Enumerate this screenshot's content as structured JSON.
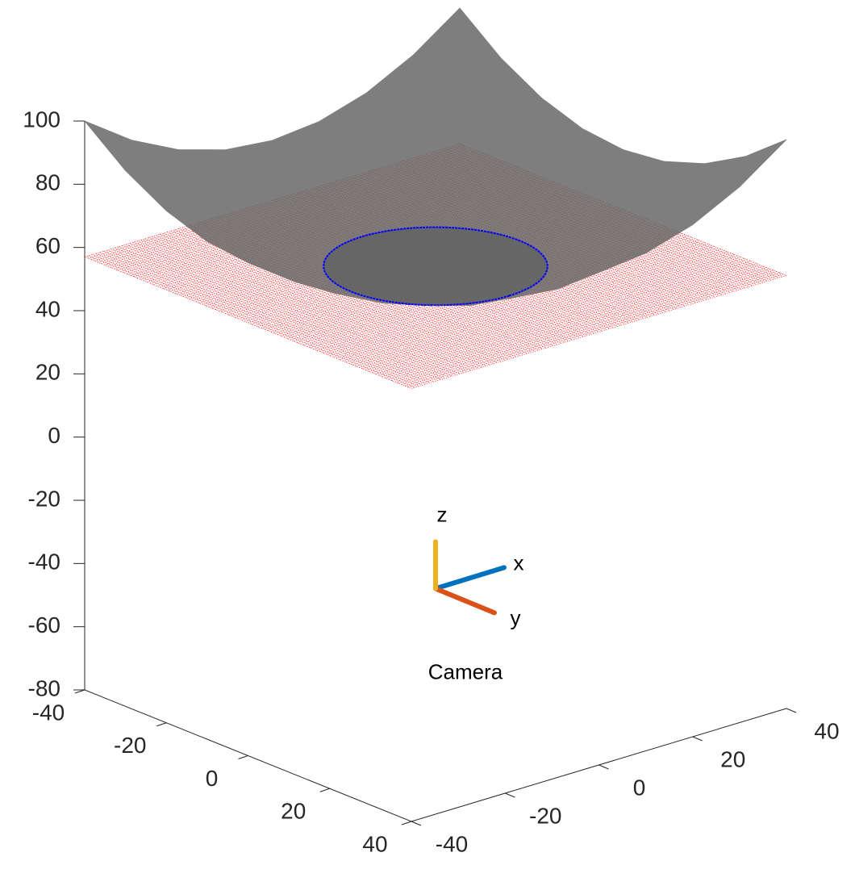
{
  "chart_data": {
    "type": "surface3d",
    "xlim": [
      -40,
      40
    ],
    "xticks": [
      -40,
      -20,
      0,
      20,
      40
    ],
    "ylim": [
      -40,
      40
    ],
    "yticks": [
      -40,
      -20,
      0,
      20,
      40
    ],
    "zlim": [
      -80,
      100
    ],
    "zticks": [
      -80,
      -60,
      -40,
      -20,
      0,
      20,
      40,
      60,
      80,
      100
    ],
    "surface": {
      "color": "#666666",
      "x": [
        -40,
        -30,
        -20,
        -10,
        0,
        10,
        20,
        30,
        40
      ],
      "y": [
        -40,
        -30,
        -20,
        -10,
        0,
        10,
        20,
        30,
        40
      ],
      "z": [
        [
          100,
          89.5,
          82,
          77.5,
          76,
          77.5,
          82,
          89.5,
          100
        ],
        [
          89.5,
          79,
          71.5,
          67,
          65.5,
          67,
          71.5,
          79,
          89.5
        ],
        [
          82,
          71.5,
          64,
          59.5,
          58,
          59.5,
          64,
          71.5,
          82
        ],
        [
          77.5,
          67,
          59.5,
          55,
          53.5,
          55,
          59.5,
          67,
          77.5
        ],
        [
          76,
          65.5,
          58,
          53.5,
          52,
          53.5,
          58,
          65.5,
          76
        ],
        [
          77.5,
          67,
          59.5,
          55,
          53.5,
          55,
          59.5,
          67,
          77.5
        ],
        [
          82,
          71.5,
          64,
          59.5,
          58,
          59.5,
          64,
          71.5,
          82
        ],
        [
          89.5,
          79,
          71.5,
          67,
          65.5,
          67,
          71.5,
          79,
          89.5
        ],
        [
          100,
          89.5,
          82,
          77.5,
          76,
          77.5,
          82,
          89.5,
          100
        ]
      ]
    },
    "plane": {
      "z": 57,
      "color": "#ff0000"
    },
    "circle": {
      "center": [
        0,
        0
      ],
      "radius": 18,
      "z": 57,
      "color": "#0000ff"
    },
    "camera": {
      "label": "Camera",
      "position": [
        0,
        0,
        -45
      ],
      "axes": [
        {
          "name": "x",
          "color": "#0072bd"
        },
        {
          "name": "y",
          "color": "#d95319"
        },
        {
          "name": "z",
          "color": "#edb120"
        }
      ]
    }
  }
}
